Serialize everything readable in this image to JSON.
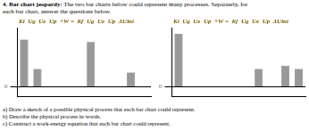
{
  "title": "4. Bar chart jeopardy:",
  "subtitle": "The two bar charts below could represent many processes. Separately, for\neach bar chart, answer the questions below.",
  "annotations": [
    "a) Draw a sketch of a possible physical process that each bar chart could represent.",
    "b) Describe the physical process in words.",
    "c) Construct a work-energy equation that each bar chart could represent."
  ],
  "chart_data": [
    {
      "type": "bar",
      "title": "Ki  Ug  Ue  Up  +W =  Kf  Ug  Ue  Up  ΔUint",
      "categories": [
        null,
        null,
        null,
        null,
        null,
        null,
        null,
        null,
        null,
        null
      ],
      "values": [
        4.0,
        1.5,
        0,
        0,
        0,
        3.8,
        0,
        0,
        1.2,
        0
      ],
      "color": "#999999",
      "ylim": [
        -0.8,
        5.0
      ],
      "yticks": [
        0
      ],
      "grid": true,
      "tick_labels": "y"
    },
    {
      "type": "bar",
      "title": "Ki  Ug  Ue  Up  +W =  Kf  Ug  Ue  Up  ΔUint",
      "categories": [
        null,
        null,
        null,
        null,
        null,
        null,
        null,
        null,
        null,
        null
      ],
      "values": [
        4.5,
        0,
        0,
        0,
        0,
        0,
        1.5,
        0,
        1.8,
        1.5
      ],
      "color": "#999999",
      "ylim": [
        -0.8,
        5.0
      ],
      "yticks": [
        0
      ],
      "grid": true,
      "tick_labels": "y"
    }
  ]
}
